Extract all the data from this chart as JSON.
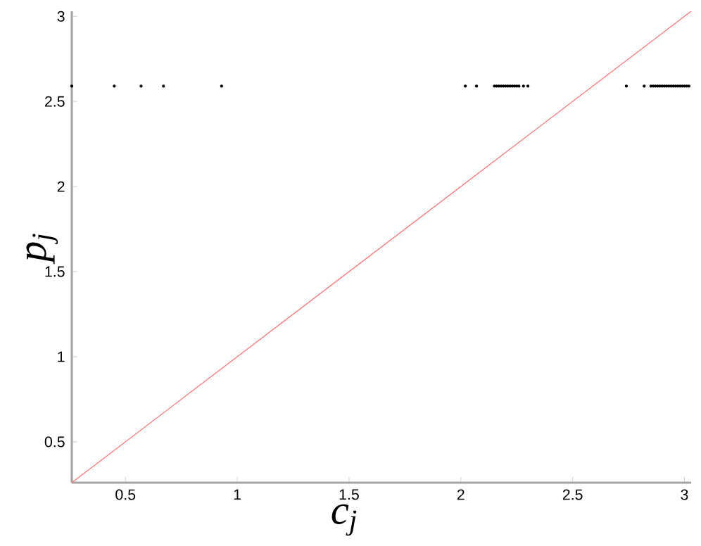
{
  "chart_data": {
    "type": "scatter",
    "xlabel": "c$_{j}$",
    "ylabel": "p$_{j}$",
    "xlim": [
      0.26,
      3.03
    ],
    "ylim": [
      0.26,
      3.03
    ],
    "xticks": [
      0.5,
      1,
      1.5,
      2,
      2.5,
      3
    ],
    "yticks": [
      0.5,
      1,
      1.5,
      2,
      2.5,
      3
    ],
    "grid": false,
    "series": [
      {
        "color": "#000000",
        "marker": "circle",
        "x": [
          0.26,
          0.45,
          0.57,
          0.67,
          0.93,
          2.02,
          2.07,
          2.15,
          2.16,
          2.17,
          2.18,
          2.19,
          2.2,
          2.21,
          2.22,
          2.23,
          2.24,
          2.25,
          2.26,
          2.28,
          2.3,
          2.74,
          2.82,
          2.85,
          2.86,
          2.87,
          2.88,
          2.89,
          2.9,
          2.91,
          2.92,
          2.93,
          2.94,
          2.95,
          2.96,
          2.97,
          2.98,
          2.99,
          3.0,
          3.01,
          3.02
        ],
        "values": [
          2.59,
          2.59,
          2.59,
          2.59,
          2.59,
          2.59,
          2.59,
          2.59,
          2.59,
          2.59,
          2.59,
          2.59,
          2.59,
          2.59,
          2.59,
          2.59,
          2.59,
          2.59,
          2.59,
          2.59,
          2.59,
          2.59,
          2.59,
          2.59,
          2.59,
          2.59,
          2.59,
          2.59,
          2.59,
          2.59,
          2.59,
          2.59,
          2.59,
          2.59,
          2.59,
          2.59,
          2.59,
          2.59,
          2.59,
          2.59,
          2.59
        ]
      },
      {
        "type": "line",
        "color": "#ff7777",
        "marker": "none",
        "line_style": "solid",
        "x": [
          0.26,
          3.03
        ],
        "values": [
          0.26,
          3.03
        ]
      }
    ]
  }
}
